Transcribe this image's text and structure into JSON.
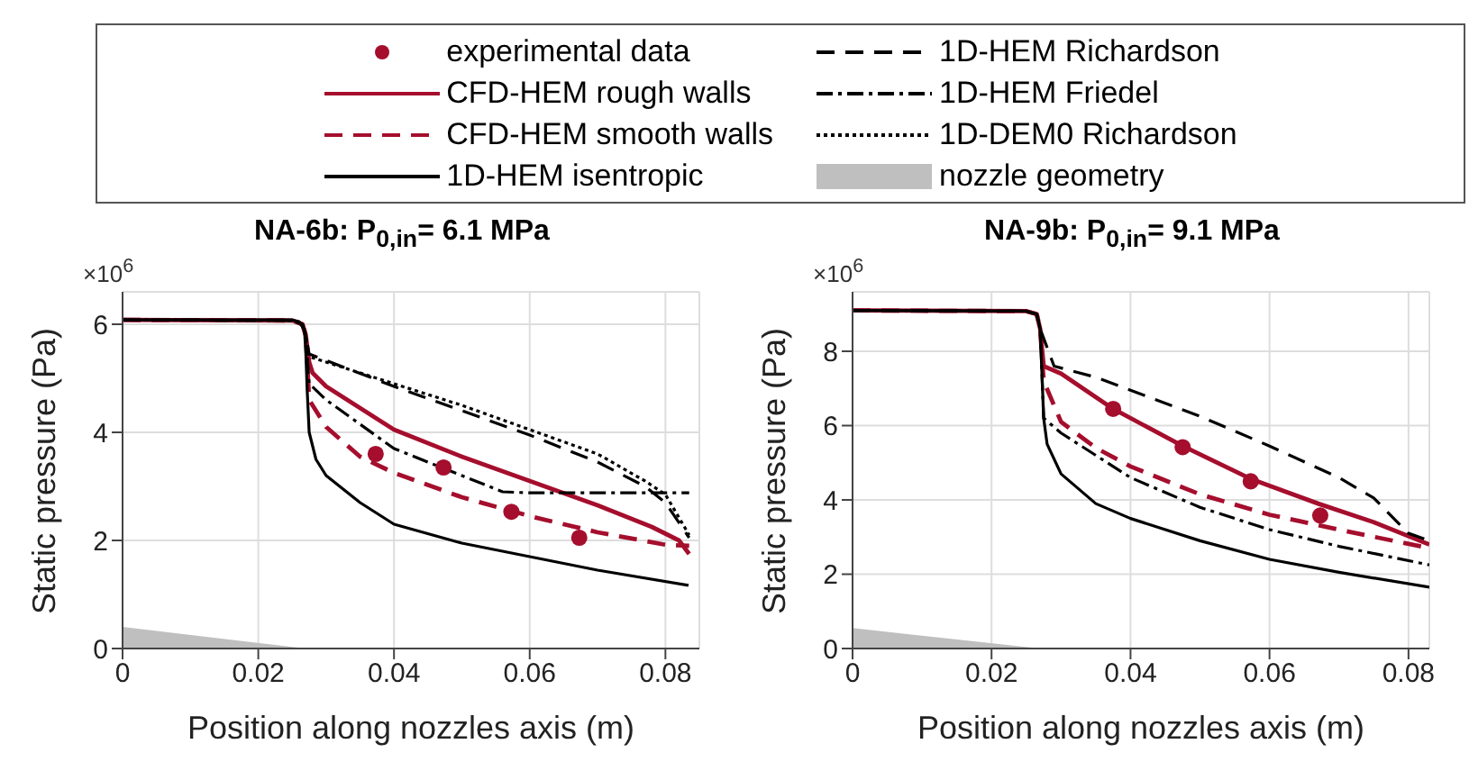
{
  "chart_data": [
    {
      "type": "line",
      "title": "NA-6b: P$_{0,in}$= 6.1 MPa",
      "xlabel": "Position along nozzles axis (m)",
      "ylabel": "Static pressure (Pa)",
      "annotations": [
        "×10$^{6}$"
      ],
      "xlim": [
        0,
        0.085
      ],
      "xticks": [
        0,
        0.02,
        0.04,
        0.06,
        0.08
      ],
      "ylim": [
        0,
        6.6
      ],
      "yticks": [
        0,
        2,
        4,
        6
      ],
      "grid": true,
      "legend": "top",
      "series": [
        {
          "name": "experimental data",
          "type": "scatter",
          "marker": "circle",
          "color": "#a50e2d",
          "x": [
            0.0373,
            0.0473,
            0.0573,
            0.0673
          ],
          "values": [
            3.6,
            3.35,
            2.53,
            2.05
          ]
        },
        {
          "name": "CFD-HEM rough walls",
          "color": "#a50e2d",
          "line_style": "solid",
          "x": [
            0,
            0.025,
            0.0265,
            0.027,
            0.0275,
            0.028,
            0.03,
            0.04,
            0.05,
            0.06,
            0.07,
            0.078,
            0.082,
            0.0835
          ],
          "values": [
            6.08,
            6.07,
            6.0,
            5.8,
            5.3,
            5.1,
            4.85,
            4.05,
            3.55,
            3.1,
            2.65,
            2.25,
            2.0,
            1.75
          ]
        },
        {
          "name": "CFD-HEM smooth walls",
          "color": "#a50e2d",
          "line_style": "dashed",
          "x": [
            0,
            0.025,
            0.0265,
            0.027,
            0.0275,
            0.03,
            0.035,
            0.04,
            0.05,
            0.06,
            0.07,
            0.08,
            0.0835
          ],
          "values": [
            6.08,
            6.07,
            6.0,
            5.8,
            4.6,
            4.1,
            3.55,
            3.25,
            2.8,
            2.45,
            2.15,
            1.92,
            1.9
          ]
        },
        {
          "name": "1D-HEM isentropic",
          "color": "#000000",
          "line_style": "solid",
          "x": [
            0,
            0.025,
            0.026,
            0.0268,
            0.027,
            0.0272,
            0.0275,
            0.0285,
            0.03,
            0.035,
            0.04,
            0.05,
            0.06,
            0.07,
            0.0834
          ],
          "values": [
            6.08,
            6.08,
            6.05,
            5.9,
            5.5,
            4.8,
            4.0,
            3.5,
            3.2,
            2.7,
            2.3,
            1.95,
            1.7,
            1.45,
            1.17
          ]
        },
        {
          "name": "1D-HEM Richardson",
          "color": "#000000",
          "line_style": "dashed",
          "x": [
            0,
            0.025,
            0.0265,
            0.027,
            0.0275,
            0.04,
            0.05,
            0.06,
            0.07,
            0.077,
            0.08,
            0.0835
          ],
          "values": [
            6.08,
            6.07,
            6.0,
            5.8,
            5.45,
            4.85,
            4.4,
            3.95,
            3.45,
            3.0,
            2.7,
            2.05
          ]
        },
        {
          "name": "1D-HEM Friedel",
          "color": "#000000",
          "line_style": "dashdot",
          "x": [
            0,
            0.025,
            0.0265,
            0.027,
            0.0275,
            0.03,
            0.04,
            0.05,
            0.056,
            0.06,
            0.07,
            0.0835
          ],
          "values": [
            6.08,
            6.07,
            6.0,
            5.8,
            4.9,
            4.6,
            3.7,
            3.2,
            2.9,
            2.88,
            2.88,
            2.88
          ]
        },
        {
          "name": "1D-DEM0 Richardson",
          "color": "#000000",
          "line_style": "dotted",
          "x": [
            0,
            0.025,
            0.0265,
            0.027,
            0.0275,
            0.04,
            0.05,
            0.06,
            0.07,
            0.077,
            0.08,
            0.0835
          ],
          "values": [
            6.08,
            6.07,
            6.0,
            5.8,
            5.4,
            4.9,
            4.5,
            4.05,
            3.6,
            3.1,
            2.85,
            2.1
          ]
        },
        {
          "name": "nozzle geometry",
          "type": "area",
          "color": "#bfbfbf",
          "x": [
            0,
            0.027
          ],
          "values": [
            0.4,
            0
          ]
        }
      ]
    },
    {
      "type": "line",
      "title": "NA-9b: P$_{0,in}$= 9.1 MPa",
      "xlabel": "Position along nozzles axis (m)",
      "ylabel": "Static pressure (Pa)",
      "annotations": [
        "×10$^{6}$"
      ],
      "xlim": [
        0,
        0.083
      ],
      "xticks": [
        0,
        0.02,
        0.04,
        0.06,
        0.08
      ],
      "ylim": [
        0,
        9.6
      ],
      "yticks": [
        0,
        2,
        4,
        6,
        8
      ],
      "grid": true,
      "series": [
        {
          "type": "scatter",
          "marker": "circle",
          "color": "#a50e2d",
          "x": [
            0.0375,
            0.0475,
            0.0573,
            0.0673
          ],
          "values": [
            6.45,
            5.42,
            4.5,
            3.58
          ]
        },
        {
          "color": "#a50e2d",
          "line_style": "solid",
          "x": [
            0,
            0.025,
            0.0265,
            0.027,
            0.0275,
            0.03,
            0.0375,
            0.0475,
            0.0575,
            0.067,
            0.075,
            0.083
          ],
          "values": [
            9.1,
            9.08,
            9.0,
            8.6,
            7.6,
            7.4,
            6.45,
            5.45,
            4.55,
            3.9,
            3.4,
            2.8
          ]
        },
        {
          "color": "#a50e2d",
          "line_style": "dashed",
          "x": [
            0,
            0.025,
            0.0265,
            0.027,
            0.0275,
            0.03,
            0.035,
            0.04,
            0.05,
            0.06,
            0.07,
            0.083
          ],
          "values": [
            9.1,
            9.08,
            9.0,
            8.6,
            7.2,
            6.1,
            5.4,
            4.9,
            4.15,
            3.6,
            3.2,
            2.7
          ]
        },
        {
          "color": "#000000",
          "line_style": "solid",
          "x": [
            0,
            0.025,
            0.0265,
            0.027,
            0.0275,
            0.028,
            0.03,
            0.035,
            0.04,
            0.05,
            0.06,
            0.07,
            0.083
          ],
          "values": [
            9.1,
            9.08,
            9.0,
            8.6,
            6.2,
            5.5,
            4.7,
            3.9,
            3.5,
            2.9,
            2.4,
            2.05,
            1.65
          ]
        },
        {
          "color": "#000000",
          "line_style": "dashed",
          "x": [
            0,
            0.025,
            0.0265,
            0.027,
            0.029,
            0.035,
            0.04,
            0.05,
            0.06,
            0.07,
            0.075,
            0.08,
            0.083
          ],
          "values": [
            9.1,
            9.08,
            9.0,
            8.6,
            7.6,
            7.3,
            6.95,
            6.25,
            5.45,
            4.6,
            4.05,
            3.1,
            2.9
          ]
        },
        {
          "color": "#000000",
          "line_style": "dashdot",
          "x": [
            0,
            0.025,
            0.0265,
            0.027,
            0.0275,
            0.03,
            0.04,
            0.05,
            0.06,
            0.07,
            0.083
          ],
          "values": [
            9.1,
            9.08,
            9.0,
            8.6,
            6.2,
            5.8,
            4.6,
            3.8,
            3.2,
            2.75,
            2.25
          ]
        },
        {
          "type": "area",
          "color": "#bfbfbf",
          "x": [
            0,
            0.027
          ],
          "values": [
            0.55,
            0
          ]
        }
      ]
    }
  ]
}
